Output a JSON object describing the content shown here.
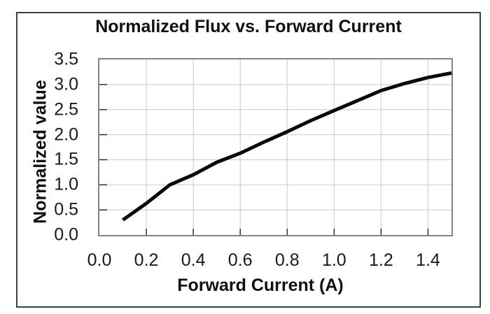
{
  "chart": {
    "title": "Normalized Flux vs. Forward Current",
    "xlabel": "Forward Current (A)",
    "ylabel": "Normalized value"
  },
  "chart_data": {
    "type": "line",
    "title": "Normalized Flux vs. Forward Current",
    "xlabel": "Forward Current (A)",
    "ylabel": "Normalized value",
    "xlim": [
      0,
      1.5
    ],
    "ylim": [
      0,
      3.5
    ],
    "grid": true,
    "legend": false,
    "xticks": {
      "values": [
        0.0,
        0.2,
        0.4,
        0.6,
        0.8,
        1.0,
        1.2,
        1.4
      ],
      "labels": [
        "0.0",
        "0.2",
        "0.4",
        "0.6",
        "0.8",
        "1.0",
        "1.2",
        "1.4"
      ]
    },
    "yticks": {
      "values": [
        0.0,
        0.5,
        1.0,
        1.5,
        2.0,
        2.5,
        3.0,
        3.5
      ],
      "labels": [
        "0.0",
        "0.5",
        "1.0",
        "1.5",
        "2.0",
        "2.5",
        "3.0",
        "3.5"
      ]
    },
    "series": [
      {
        "x": [
          0.1,
          0.2,
          0.3,
          0.4,
          0.5,
          0.6,
          0.7,
          0.8,
          0.9,
          1.0,
          1.1,
          1.2,
          1.3,
          1.4,
          1.5
        ],
        "y": [
          0.3,
          0.63,
          1.0,
          1.2,
          1.45,
          1.63,
          1.85,
          2.06,
          2.28,
          2.48,
          2.68,
          2.88,
          3.02,
          3.14,
          3.23
        ]
      }
    ]
  },
  "colors": {
    "curve": "#0a0a0a",
    "gridline": "#c9c9c9",
    "plot_frame": "#848484",
    "outer_border": "#3f3f3f",
    "tick_mark": "#303030",
    "text": "#111111"
  }
}
